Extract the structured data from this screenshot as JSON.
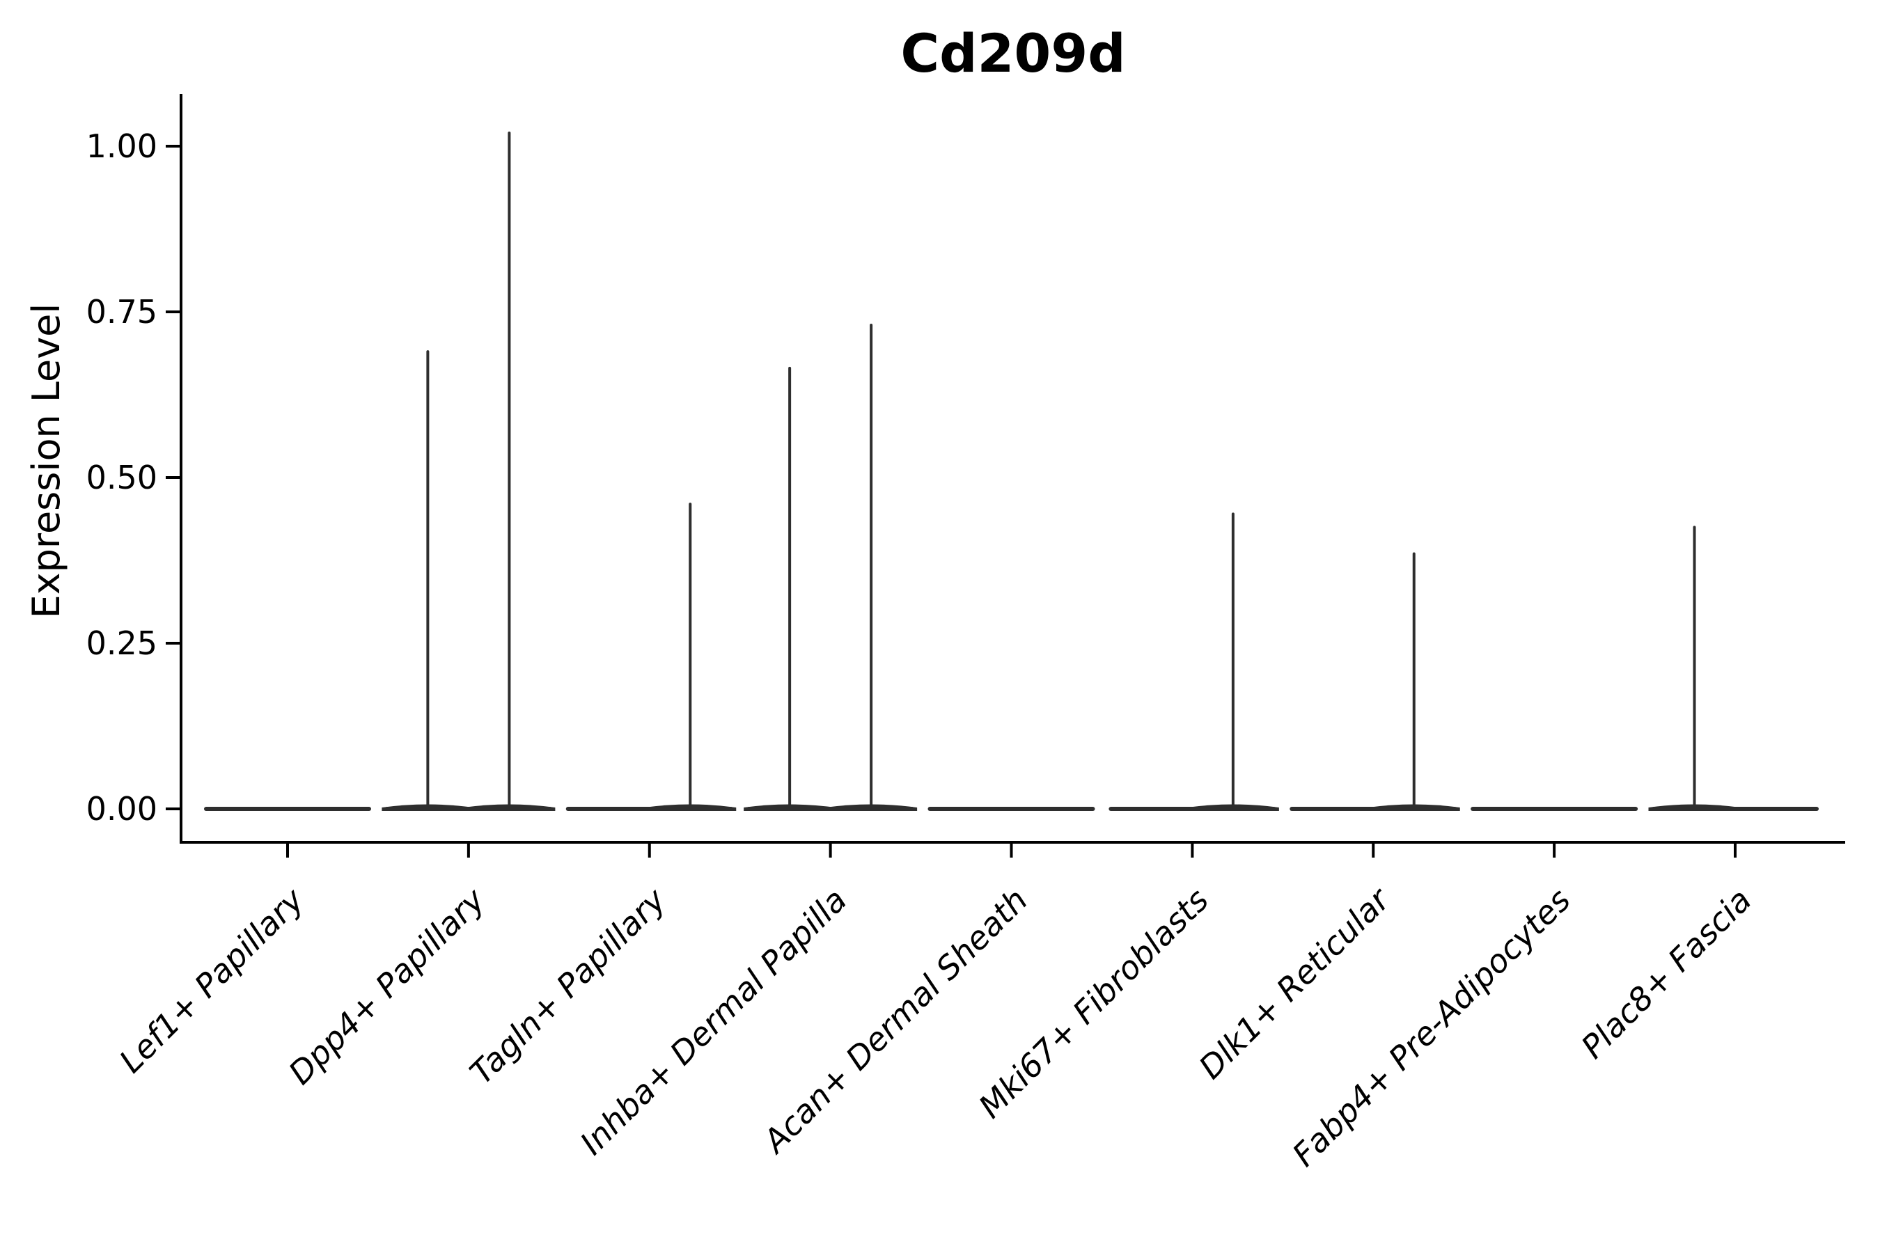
{
  "title": "Cd209d",
  "ylabel": "Expression Level",
  "chart_data": {
    "type": "violin",
    "title": "Cd209d",
    "xlabel": "",
    "ylabel": "Expression Level",
    "ylim": [
      -0.05,
      1.08
    ],
    "yticks": [
      {
        "value": 0.0,
        "label": "0.00"
      },
      {
        "value": 0.25,
        "label": "0.25"
      },
      {
        "value": 0.5,
        "label": "0.50"
      },
      {
        "value": 0.75,
        "label": "0.75"
      },
      {
        "value": 1.0,
        "label": "1.00"
      }
    ],
    "categories": [
      "Lef1+ Papillary",
      "Dpp4+ Papillary",
      "Tagln+ Papillary",
      "Inhba+ Dermal Papilla",
      "Acan+ Dermal Sheath",
      "Mki67+ Fibroblasts",
      "Dlk1+ Reticular",
      "Fabp4+ Pre-Adipocytes",
      "Plac8+ Fascia"
    ],
    "grid": false,
    "legend": "none",
    "x_tick_label_rotation_deg": 45,
    "x_tick_label_style": "italic",
    "baseline_value": 0.0,
    "violins": [
      {
        "category": "Lef1+ Papillary",
        "body_at_zero": true,
        "spikes": []
      },
      {
        "category": "Dpp4+ Papillary",
        "body_at_zero": true,
        "spikes": [
          {
            "side": "left",
            "max_value": 0.69
          },
          {
            "side": "right",
            "max_value": 1.02
          }
        ]
      },
      {
        "category": "Tagln+ Papillary",
        "body_at_zero": true,
        "spikes": [
          {
            "side": "right",
            "max_value": 0.46
          }
        ]
      },
      {
        "category": "Inhba+ Dermal Papilla",
        "body_at_zero": true,
        "spikes": [
          {
            "side": "left",
            "max_value": 0.665
          },
          {
            "side": "right",
            "max_value": 0.73
          }
        ]
      },
      {
        "category": "Acan+ Dermal Sheath",
        "body_at_zero": true,
        "spikes": []
      },
      {
        "category": "Mki67+ Fibroblasts",
        "body_at_zero": true,
        "spikes": [
          {
            "side": "right",
            "max_value": 0.445
          }
        ]
      },
      {
        "category": "Dlk1+ Reticular",
        "body_at_zero": true,
        "spikes": [
          {
            "side": "right",
            "max_value": 0.385
          }
        ]
      },
      {
        "category": "Fabp4+ Pre-Adipocytes",
        "body_at_zero": true,
        "spikes": []
      },
      {
        "category": "Plac8+ Fascia",
        "body_at_zero": true,
        "spikes": [
          {
            "side": "left",
            "max_value": 0.425
          }
        ]
      }
    ],
    "colors": {
      "violin_stroke": "#2e2e2e",
      "axis": "#000000",
      "text": "#000000",
      "background": "#ffffff"
    }
  }
}
